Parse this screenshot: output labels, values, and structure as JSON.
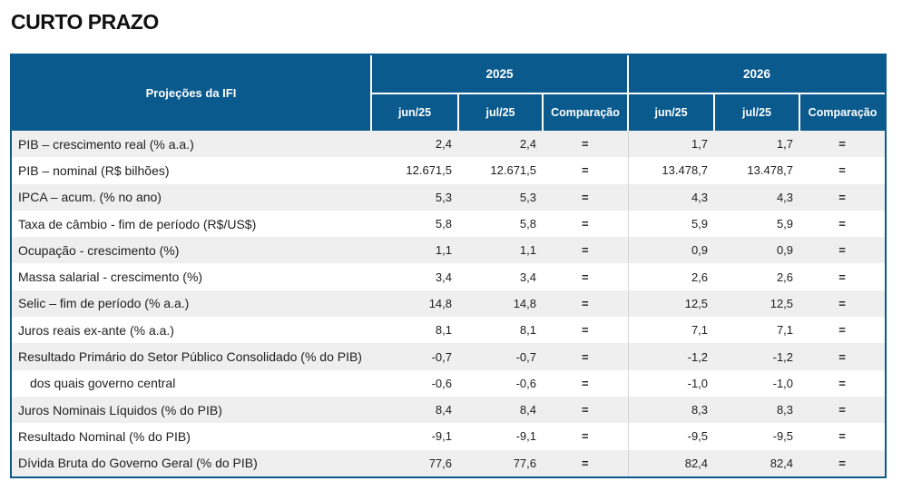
{
  "title": "CURTO PRAZO",
  "colors": {
    "header_blue": "#0a5a8e",
    "row_shade": "#efefef"
  },
  "table": {
    "corner_label": "Projeções da IFI",
    "years": [
      "2025",
      "2026"
    ],
    "columns": [
      "jun/25",
      "jul/25",
      "Comparação",
      "jun/25",
      "jul/25",
      "Comparação"
    ],
    "rows": [
      {
        "label": "PIB – crescimento real (% a.a.)",
        "values": [
          "2,4",
          "2,4",
          "=",
          "1,7",
          "1,7",
          "="
        ]
      },
      {
        "label": "PIB – nominal (R$ bilhões)",
        "values": [
          "12.671,5",
          "12.671,5",
          "=",
          "13.478,7",
          "13.478,7",
          "="
        ]
      },
      {
        "label": "IPCA – acum. (% no ano)",
        "values": [
          "5,3",
          "5,3",
          "=",
          "4,3",
          "4,3",
          "="
        ]
      },
      {
        "label": "Taxa de câmbio - fim de período (R$/US$)",
        "values": [
          "5,8",
          "5,8",
          "=",
          "5,9",
          "5,9",
          "="
        ]
      },
      {
        "label": "Ocupação - crescimento (%)",
        "values": [
          "1,1",
          "1,1",
          "=",
          "0,9",
          "0,9",
          "="
        ]
      },
      {
        "label": "Massa salarial - crescimento (%)",
        "values": [
          "3,4",
          "3,4",
          "=",
          "2,6",
          "2,6",
          "="
        ]
      },
      {
        "label": "Selic – fim de período (% a.a.)",
        "values": [
          "14,8",
          "14,8",
          "=",
          "12,5",
          "12,5",
          "="
        ]
      },
      {
        "label": "Juros reais ex-ante (% a.a.)",
        "values": [
          "8,1",
          "8,1",
          "=",
          "7,1",
          "7,1",
          "="
        ]
      },
      {
        "label": "Resultado Primário do Setor Público Consolidado (% do PIB)",
        "values": [
          "-0,7",
          "-0,7",
          "=",
          "-1,2",
          "-1,2",
          "="
        ]
      },
      {
        "label": "dos quais governo central",
        "sub_item": true,
        "values": [
          "-0,6",
          "-0,6",
          "=",
          "-1,0",
          "-1,0",
          "="
        ]
      },
      {
        "label": "Juros Nominais Líquidos (% do PIB)",
        "values": [
          "8,4",
          "8,4",
          "=",
          "8,3",
          "8,3",
          "="
        ]
      },
      {
        "label": "Resultado Nominal (% do PIB)",
        "values": [
          "-9,1",
          "-9,1",
          "=",
          "-9,5",
          "-9,5",
          "="
        ]
      },
      {
        "label": "Dívida Bruta do Governo Geral (% do PIB)",
        "values": [
          "77,6",
          "77,6",
          "=",
          "82,4",
          "82,4",
          "="
        ]
      }
    ]
  }
}
